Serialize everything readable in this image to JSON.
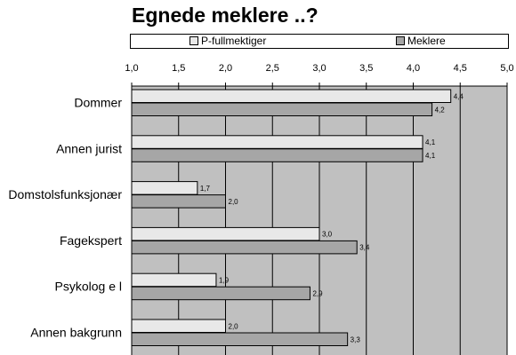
{
  "chart_data": {
    "type": "bar",
    "orientation": "horizontal",
    "title": "Egnede meklere ..?",
    "categories": [
      "Dommer",
      "Annen jurist",
      "Domstolsfunksjonær",
      "Fagekspert",
      "Psykolog e l",
      "Annen bakgrunn"
    ],
    "series": [
      {
        "name": "P-fullmektiger",
        "color": "#e8e8e8",
        "values": [
          4.4,
          4.1,
          1.7,
          3.0,
          1.9,
          2.0
        ],
        "labels": [
          "4,4",
          "4,1",
          "1,7",
          "3,0",
          "1,9",
          "2,0"
        ]
      },
      {
        "name": "Meklere",
        "color": "#a6a6a6",
        "values": [
          4.2,
          4.1,
          2.0,
          3.4,
          2.9,
          3.3
        ],
        "labels": [
          "4,2",
          "4,1",
          "2,0",
          "3,4",
          "2,9",
          "3,3"
        ]
      }
    ],
    "xlim": [
      1.0,
      5.0
    ],
    "xticks": [
      1.0,
      1.5,
      2.0,
      2.5,
      3.0,
      3.5,
      4.0,
      4.5,
      5.0
    ],
    "xtick_labels": [
      "1,0",
      "1,5",
      "2,0",
      "2,5",
      "3,0",
      "3,5",
      "4,0",
      "4,5",
      "5,0"
    ],
    "axis_position": "top",
    "grid": true,
    "legend": "top",
    "plot_background": "#c0c0c0"
  }
}
